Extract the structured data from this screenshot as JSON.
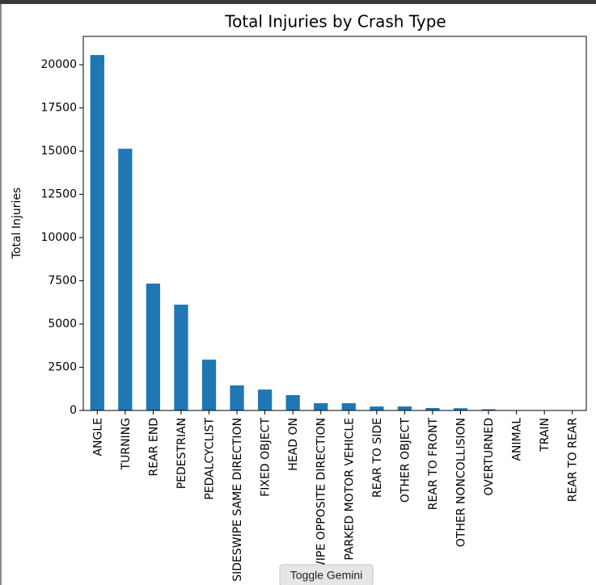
{
  "chart_data": {
    "type": "bar",
    "title": "Total Injuries by Crash Type",
    "y_label": "Total Injuries",
    "categories": [
      "ANGLE",
      "TURNING",
      "REAR END",
      "PEDESTRIAN",
      "PEDALCYCLIST",
      "SIDESWIPE SAME DIRECTION",
      "FIXED OBJECT",
      "HEAD ON",
      "SIDESWIPE OPPOSITE DIRECTION",
      "PARKED MOTOR VEHICLE",
      "REAR TO SIDE",
      "OTHER OBJECT",
      "REAR TO FRONT",
      "OTHER NONCOLLISION",
      "OVERTURNED",
      "ANIMAL",
      "TRAIN",
      "REAR TO REAR"
    ],
    "values": [
      20560,
      15140,
      7340,
      6120,
      2940,
      1450,
      1210,
      890,
      420,
      420,
      230,
      230,
      140,
      130,
      70,
      10,
      5,
      3
    ],
    "color": "#1f77b4",
    "ylim": [
      0,
      21640
    ],
    "yticks": [
      0,
      2500,
      5000,
      7500,
      10000,
      12500,
      15000,
      17500,
      20000
    ],
    "grid": false
  },
  "ui": {
    "button": "Toggle Gemini"
  }
}
